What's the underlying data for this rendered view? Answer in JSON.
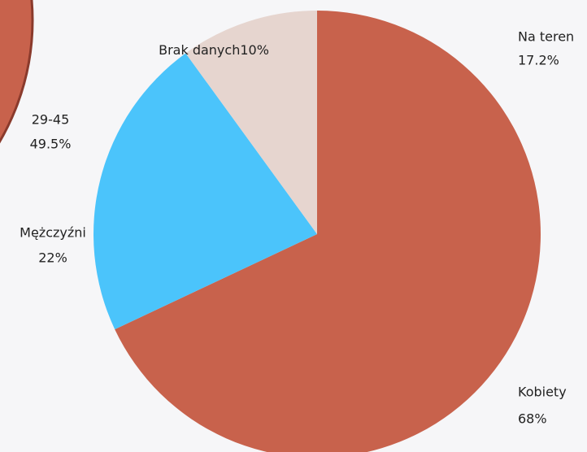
{
  "chart_data": [
    {
      "type": "pie",
      "categories": [
        "Kobiety",
        "Mężczyźni",
        "Brak danych"
      ],
      "values": [
        68,
        22,
        10
      ],
      "value_labels": [
        "68%",
        "22%",
        "10%"
      ],
      "colors": [
        "#c8624c",
        "#4bc4fb",
        "#e6d5cf"
      ]
    },
    {
      "type": "pie",
      "categories": [
        "29-45"
      ],
      "values": [
        49.5
      ],
      "value_labels": [
        "49.5%"
      ],
      "colors": [
        "#c8624c"
      ]
    },
    {
      "type": "pie",
      "categories": [
        "Na teren"
      ],
      "values": [
        17.2
      ],
      "value_labels": [
        "17.2%"
      ],
      "colors": [
        "#c8624c"
      ]
    }
  ]
}
